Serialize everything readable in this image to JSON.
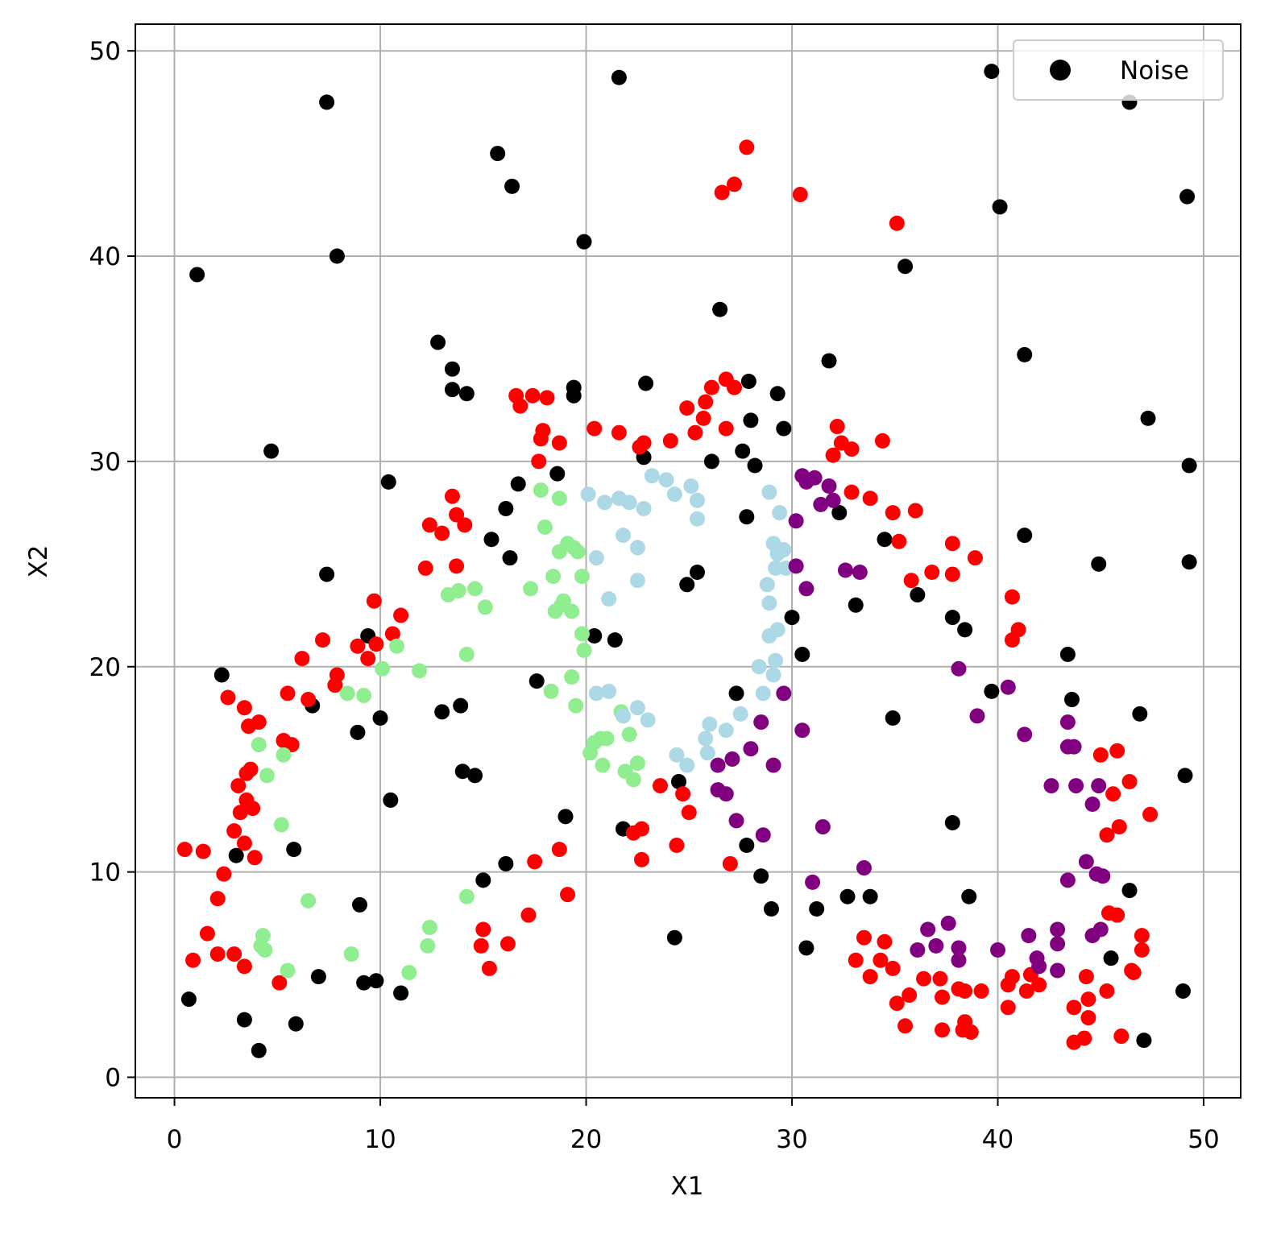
{
  "chart_data": {
    "type": "scatter",
    "xlabel": "X1",
    "ylabel": "X2",
    "xlim": [
      -1.9,
      51.8
    ],
    "ylim": [
      -1.0,
      51.3
    ],
    "xticks": [
      0,
      10,
      20,
      30,
      40,
      50
    ],
    "yticks": [
      0,
      10,
      20,
      30,
      40,
      50
    ],
    "grid": true,
    "legend": "upper right",
    "series": [
      {
        "name": "Noise",
        "color": "#000000",
        "x": [
          0.7,
          1.1,
          2.3,
          3.0,
          3.4,
          4.1,
          4.7,
          5.8,
          5.9,
          6.7,
          7.0,
          7.4,
          7.4,
          7.9,
          8.9,
          9.0,
          9.2,
          9.4,
          9.8,
          10.0,
          10.4,
          10.5,
          11.0,
          12.8,
          13.0,
          13.5,
          13.5,
          13.9,
          14.0,
          14.2,
          14.6,
          15.0,
          15.4,
          15.7,
          16.1,
          16.1,
          16.3,
          16.4,
          16.7,
          17.6,
          18.6,
          19.0,
          19.4,
          19.4,
          19.9,
          20.4,
          21.4,
          21.6,
          21.8,
          22.8,
          22.9,
          24.3,
          24.5,
          24.9,
          25.4,
          26.1,
          26.5,
          27.3,
          27.6,
          27.8,
          27.8,
          27.9,
          28.0,
          28.2,
          28.5,
          29.0,
          29.3,
          29.6,
          30.0,
          30.5,
          30.7,
          31.2,
          31.8,
          32.3,
          32.7,
          33.1,
          33.8,
          34.5,
          34.9,
          35.5,
          36.1,
          37.8,
          37.8,
          38.4,
          38.6,
          39.7,
          39.7,
          40.1,
          41.3,
          41.3,
          43.4,
          43.6,
          44.9,
          45.5,
          46.4,
          46.4,
          46.9,
          47.1,
          47.3,
          49.0,
          49.1,
          49.2,
          49.3,
          49.3
        ],
        "y": [
          3.8,
          39.1,
          19.6,
          10.8,
          2.8,
          1.3,
          30.5,
          11.1,
          2.6,
          18.1,
          4.9,
          47.5,
          24.5,
          40.0,
          16.8,
          8.4,
          4.6,
          21.5,
          4.7,
          17.5,
          29.0,
          13.5,
          4.1,
          35.8,
          17.8,
          34.5,
          33.5,
          18.1,
          14.9,
          33.3,
          14.7,
          9.6,
          26.2,
          45.0,
          27.7,
          10.4,
          25.3,
          43.4,
          28.9,
          19.3,
          29.4,
          12.7,
          33.6,
          33.2,
          40.7,
          21.5,
          21.3,
          48.7,
          12.1,
          30.2,
          33.8,
          6.8,
          14.4,
          24.0,
          24.6,
          30.0,
          37.4,
          18.7,
          30.5,
          11.3,
          27.3,
          33.9,
          32.0,
          29.8,
          9.8,
          8.2,
          33.3,
          31.6,
          22.4,
          20.6,
          6.3,
          8.2,
          34.9,
          27.5,
          8.8,
          23.0,
          8.8,
          26.2,
          17.5,
          39.5,
          23.5,
          12.4,
          22.4,
          21.8,
          8.8,
          49.0,
          18.8,
          42.4,
          35.2,
          26.4,
          20.6,
          18.4,
          25.0,
          5.8,
          9.1,
          47.5,
          17.7,
          1.8,
          32.1,
          4.2,
          14.7,
          42.9,
          29.8,
          25.1
        ]
      },
      {
        "color": "#ff0000",
        "x": [
          0.5,
          1.4,
          0.9,
          1.6,
          2.1,
          2.1,
          2.4,
          2.6,
          2.9,
          2.9,
          3.1,
          3.2,
          3.4,
          3.4,
          3.5,
          3.4,
          3.5,
          3.6,
          3.7,
          3.8,
          3.9,
          4.1,
          5.1,
          5.3,
          5.5,
          5.7,
          6.2,
          6.5,
          7.2,
          7.8,
          7.9,
          8.9,
          9.4,
          9.7,
          9.8,
          10.6,
          11.0,
          12.2,
          12.4,
          13.0,
          13.5,
          13.7,
          13.7,
          14.1,
          14.9,
          15.0,
          15.3,
          16.2,
          16.6,
          16.8,
          17.2,
          17.4,
          17.5,
          17.7,
          17.8,
          17.9,
          18.1,
          18.7,
          18.7,
          19.1,
          20.4,
          21.6,
          22.3,
          22.6,
          22.7,
          22.7,
          22.8,
          23.6,
          24.1,
          24.4,
          24.7,
          24.9,
          25.0,
          25.3,
          25.7,
          25.8,
          26.1,
          26.6,
          26.8,
          26.8,
          27.0,
          27.2,
          27.2,
          27.8,
          30.4,
          32.0,
          32.2,
          32.4,
          32.9,
          32.9,
          33.1,
          33.5,
          33.8,
          33.8,
          34.3,
          34.4,
          34.5,
          34.9,
          34.9,
          35.1,
          35.1,
          35.2,
          35.5,
          35.7,
          35.8,
          36.0,
          36.4,
          36.8,
          37.2,
          37.3,
          37.3,
          37.8,
          37.8,
          38.1,
          38.3,
          38.4,
          38.4,
          38.7,
          38.9,
          39.2,
          40.5,
          40.5,
          40.7,
          40.7,
          40.7,
          41.0,
          41.4,
          41.6,
          42.0,
          43.7,
          43.7,
          44.2,
          44.3,
          44.4,
          44.4,
          45.0,
          45.3,
          45.3,
          45.4,
          45.6,
          45.8,
          45.8,
          45.9,
          46.0,
          46.4,
          46.5,
          46.6,
          47.0,
          47.0,
          47.4
        ],
        "y": [
          11.1,
          11.0,
          5.7,
          7.0,
          8.7,
          6.0,
          9.9,
          18.5,
          6.0,
          12.0,
          14.2,
          12.9,
          18.0,
          11.4,
          14.8,
          5.4,
          13.5,
          17.1,
          15.0,
          13.1,
          10.7,
          17.3,
          4.6,
          16.4,
          18.7,
          16.2,
          20.4,
          18.4,
          21.3,
          19.1,
          19.6,
          21.0,
          20.4,
          23.2,
          21.1,
          21.6,
          22.5,
          24.8,
          26.9,
          26.5,
          28.3,
          27.4,
          24.9,
          26.9,
          6.4,
          7.2,
          5.3,
          6.5,
          33.2,
          32.7,
          7.9,
          33.2,
          10.5,
          30.0,
          31.1,
          31.5,
          33.1,
          30.9,
          11.1,
          8.9,
          31.6,
          31.4,
          11.9,
          30.7,
          10.6,
          12.1,
          30.9,
          14.2,
          31.0,
          11.3,
          13.8,
          32.6,
          12.9,
          31.4,
          32.1,
          32.9,
          33.6,
          43.1,
          31.6,
          34.0,
          10.4,
          33.6,
          43.5,
          45.3,
          43.0,
          30.3,
          31.7,
          30.9,
          30.6,
          28.5,
          5.7,
          6.8,
          4.9,
          28.2,
          5.7,
          31.0,
          6.6,
          5.3,
          27.5,
          41.6,
          3.6,
          26.1,
          2.5,
          4.0,
          24.2,
          27.6,
          4.8,
          24.6,
          4.8,
          3.9,
          2.3,
          26.0,
          24.5,
          4.3,
          2.3,
          2.7,
          4.2,
          2.2,
          25.3,
          4.2,
          4.5,
          3.4,
          4.9,
          23.4,
          21.3,
          21.8,
          4.2,
          5.0,
          4.5,
          1.7,
          3.4,
          1.9,
          4.9,
          2.9,
          3.8,
          15.7,
          4.2,
          11.8,
          8.0,
          13.8,
          15.9,
          7.9,
          12.2,
          2.0,
          14.4,
          5.2,
          5.1,
          6.9,
          6.2,
          12.8
        ]
      },
      {
        "color": "#90ee90",
        "x": [
          4.1,
          4.2,
          4.3,
          4.4,
          4.5,
          5.2,
          5.3,
          5.5,
          6.5,
          8.4,
          8.6,
          9.2,
          10.1,
          10.8,
          11.4,
          11.9,
          12.3,
          12.4,
          13.3,
          13.8,
          14.2,
          14.2,
          14.6,
          15.1,
          17.3,
          17.8,
          18.0,
          18.3,
          18.4,
          18.7,
          18.5,
          18.7,
          18.8,
          18.9,
          19.1,
          19.3,
          19.3,
          19.4,
          19.5,
          19.6,
          19.8,
          19.8,
          19.9,
          20.2,
          20.4,
          20.7,
          20.8,
          21.0,
          21.7,
          21.9,
          22.1,
          22.3,
          22.5
        ],
        "y": [
          16.2,
          6.4,
          6.9,
          6.2,
          14.7,
          12.3,
          15.7,
          5.2,
          8.6,
          18.7,
          6.0,
          18.6,
          19.9,
          21.0,
          5.1,
          19.8,
          6.4,
          7.3,
          23.5,
          23.7,
          20.6,
          8.8,
          23.8,
          22.9,
          23.8,
          28.6,
          26.8,
          18.8,
          24.4,
          28.2,
          22.7,
          25.6,
          23.0,
          23.2,
          26.0,
          19.5,
          22.7,
          25.8,
          18.1,
          25.6,
          24.4,
          21.6,
          20.8,
          15.8,
          16.3,
          16.5,
          15.2,
          16.5,
          17.8,
          14.9,
          16.7,
          14.5,
          15.3
        ]
      },
      {
        "color": "#add8e6",
        "x": [
          20.1,
          20.5,
          20.5,
          20.9,
          21.1,
          21.1,
          21.6,
          21.8,
          21.8,
          22.1,
          22.5,
          22.5,
          22.5,
          22.8,
          23.0,
          23.2,
          23.9,
          24.3,
          24.4,
          24.9,
          25.1,
          25.4,
          25.4,
          25.8,
          25.9,
          26.0,
          26.8,
          27.5,
          28.6,
          28.4,
          28.8,
          28.9,
          28.9,
          28.9,
          29.1,
          29.1,
          29.2,
          29.2,
          29.3,
          29.3,
          29.4,
          29.6,
          29.7
        ],
        "y": [
          28.4,
          25.3,
          18.7,
          28.0,
          23.3,
          18.8,
          28.2,
          26.4,
          17.6,
          28.0,
          24.2,
          25.8,
          18.0,
          27.7,
          17.4,
          29.3,
          29.1,
          28.4,
          15.7,
          15.2,
          28.8,
          28.1,
          27.2,
          16.5,
          15.8,
          17.2,
          16.9,
          17.7,
          18.7,
          20.0,
          24.0,
          28.5,
          21.5,
          23.1,
          19.6,
          26.0,
          24.8,
          20.3,
          21.8,
          25.5,
          27.5,
          25.7,
          24.8
        ]
      },
      {
        "color": "#800080",
        "x": [
          26.4,
          26.4,
          26.8,
          27.1,
          27.3,
          28.0,
          28.5,
          28.6,
          29.1,
          29.6,
          30.2,
          30.2,
          30.5,
          30.5,
          30.7,
          30.7,
          31.0,
          31.1,
          31.4,
          31.5,
          31.8,
          32.0,
          32.6,
          33.3,
          33.5,
          36.1,
          36.6,
          37.0,
          37.6,
          38.1,
          38.1,
          38.1,
          39.0,
          40.0,
          40.5,
          41.3,
          41.5,
          41.9,
          42.0,
          42.6,
          42.9,
          42.9,
          42.9,
          43.4,
          43.4,
          43.4,
          43.7,
          43.8,
          44.3,
          44.6,
          44.6,
          44.8,
          45.0,
          44.9,
          45.1
        ],
        "y": [
          15.2,
          14.0,
          13.8,
          15.5,
          12.5,
          16.0,
          17.3,
          11.8,
          15.2,
          18.7,
          24.9,
          27.1,
          29.3,
          16.9,
          23.8,
          29.0,
          9.5,
          29.2,
          27.9,
          12.2,
          28.8,
          28.1,
          24.7,
          24.6,
          10.2,
          6.2,
          7.2,
          6.4,
          7.5,
          5.7,
          6.3,
          19.9,
          17.6,
          6.2,
          19.0,
          16.7,
          6.9,
          5.8,
          5.4,
          14.2,
          7.2,
          6.5,
          5.2,
          9.6,
          17.3,
          16.1,
          16.1,
          14.2,
          10.5,
          13.3,
          6.9,
          9.9,
          7.2,
          14.2,
          9.8
        ]
      }
    ]
  }
}
